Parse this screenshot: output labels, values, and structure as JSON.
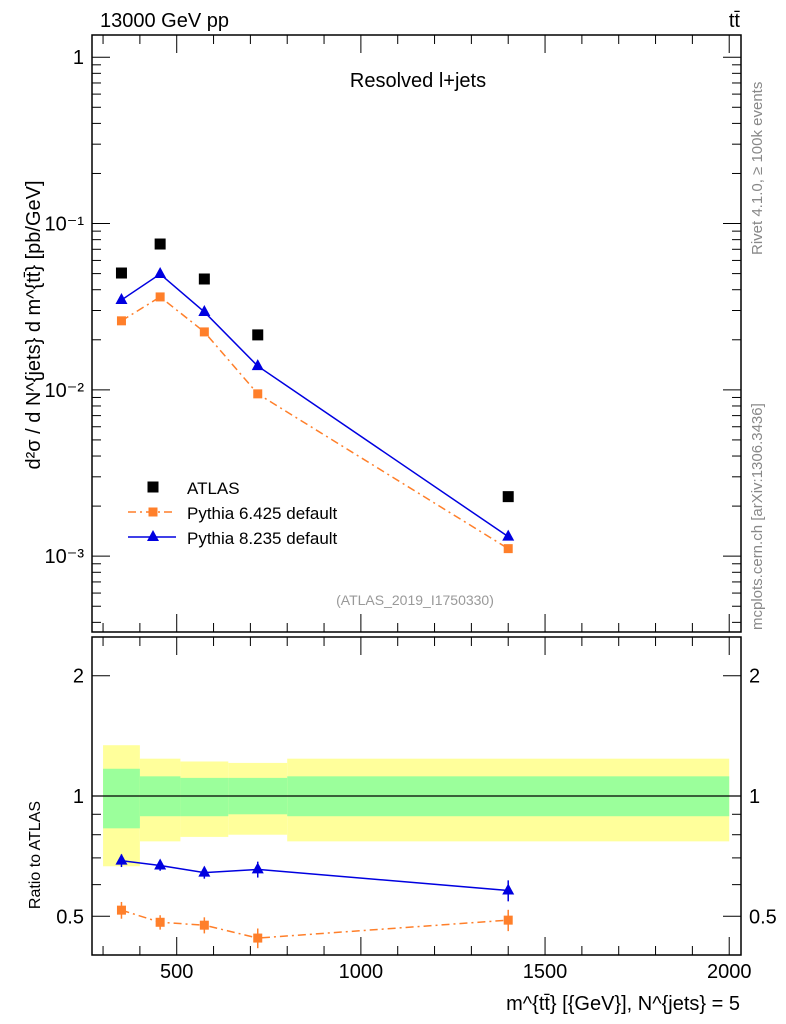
{
  "chart_data": [
    {
      "type": "scatter",
      "title": "Resolved l+jets",
      "header_left": "13000 GeV pp",
      "header_right": "tt̄",
      "ylabel": "d²σ / d N^{jets} d m^{tt̄} [pb/GeV]",
      "yscale": "log",
      "ylim": [
        0.00035,
        1.36
      ],
      "xlim": [
        270,
        2032
      ],
      "ytick_labels": [
        "1",
        "10⁻¹",
        "10⁻²",
        "10⁻³"
      ],
      "ytick_values": [
        1,
        0.1,
        0.01,
        0.001
      ],
      "legend_position": "bottom-left",
      "x": [
        350,
        455,
        575,
        720,
        1400
      ],
      "series": [
        {
          "name": "ATLAS",
          "color": "#000000",
          "marker": "square",
          "values": [
            0.0504,
            0.0753,
            0.0464,
            0.0214,
            0.00228
          ]
        },
        {
          "name": "Pythia 6.425 default",
          "color": "#ff7f2a",
          "marker": "square",
          "line": "dashdot",
          "values": [
            0.026,
            0.0362,
            0.0223,
            0.00946,
            0.00111
          ]
        },
        {
          "name": "Pythia 8.235 default",
          "color": "#0000e0",
          "marker": "triangle",
          "line": "solid",
          "values": [
            0.0347,
            0.0497,
            0.0294,
            0.0139,
            0.00131
          ]
        }
      ],
      "watermark": "(ATLAS_2019_I1750330)",
      "side_text_top": "Rivet 4.1.0, ≥ 100k events",
      "side_text_bottom": "mcplots.cern.ch [arXiv:1306.3436]"
    },
    {
      "type": "scatter",
      "ylabel": "Ratio to ATLAS",
      "yscale": "log",
      "ylim": [
        0.4,
        2.5
      ],
      "ytick_labels": [
        "2",
        "1",
        "0.5"
      ],
      "ytick_values": [
        2,
        1,
        0.5
      ],
      "xlabel": "m^{tt̄} [{GeV}], N^{jets} = 5",
      "xtick_labels": [
        "500",
        "1000",
        "1500",
        "2000"
      ],
      "xtick_values": [
        500,
        1000,
        1500,
        2000
      ],
      "bin_edges": [
        300,
        400,
        510,
        640,
        800,
        2000
      ],
      "band_inner": {
        "color": "#9bff9b",
        "low": [
          0.83,
          0.89,
          0.89,
          0.9,
          0.89
        ],
        "high": [
          1.17,
          1.12,
          1.11,
          1.11,
          1.12
        ]
      },
      "band_outer": {
        "color": "#ffff9b",
        "low": [
          0.667,
          0.77,
          0.79,
          0.8,
          0.77
        ],
        "high": [
          1.34,
          1.24,
          1.22,
          1.21,
          1.24
        ]
      },
      "x": [
        350,
        455,
        575,
        720,
        1400
      ],
      "series": [
        {
          "name": "Pythia 6.425 default",
          "color": "#ff7f2a",
          "values": [
            0.518,
            0.483,
            0.475,
            0.441,
            0.489
          ],
          "err": [
            0.025,
            0.02,
            0.022,
            0.025,
            0.03
          ]
        },
        {
          "name": "Pythia 8.235 default",
          "color": "#0000e0",
          "values": [
            0.689,
            0.67,
            0.643,
            0.655,
            0.58
          ],
          "err": [
            0.025,
            0.02,
            0.022,
            0.03,
            0.035
          ]
        }
      ]
    }
  ]
}
